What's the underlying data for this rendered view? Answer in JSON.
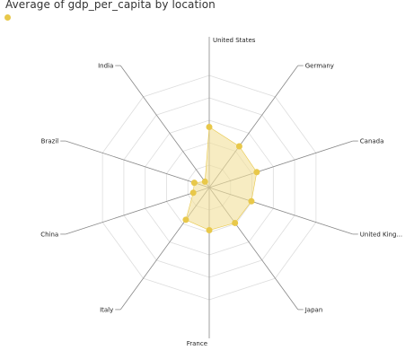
{
  "chart_data": {
    "type": "radar",
    "title": "Average of gdp_per_capita by location",
    "categories": [
      "United States",
      "Germany",
      "Canada",
      "United King...",
      "Japan",
      "France",
      "Italy",
      "China",
      "Brazil",
      "India"
    ],
    "series": [
      {
        "values": [
          54000,
          45500,
          44500,
          39500,
          39000,
          38000,
          35500,
          15000,
          14000,
          6500
        ]
      }
    ],
    "rlim": [
      0,
      100000
    ],
    "grid_levels": 5,
    "grid": true,
    "legend": "top-left",
    "colors": {
      "series": "#e8c84a",
      "fill": "#f2df9a",
      "grid": "#dddddd",
      "spoke": "#888888"
    }
  }
}
